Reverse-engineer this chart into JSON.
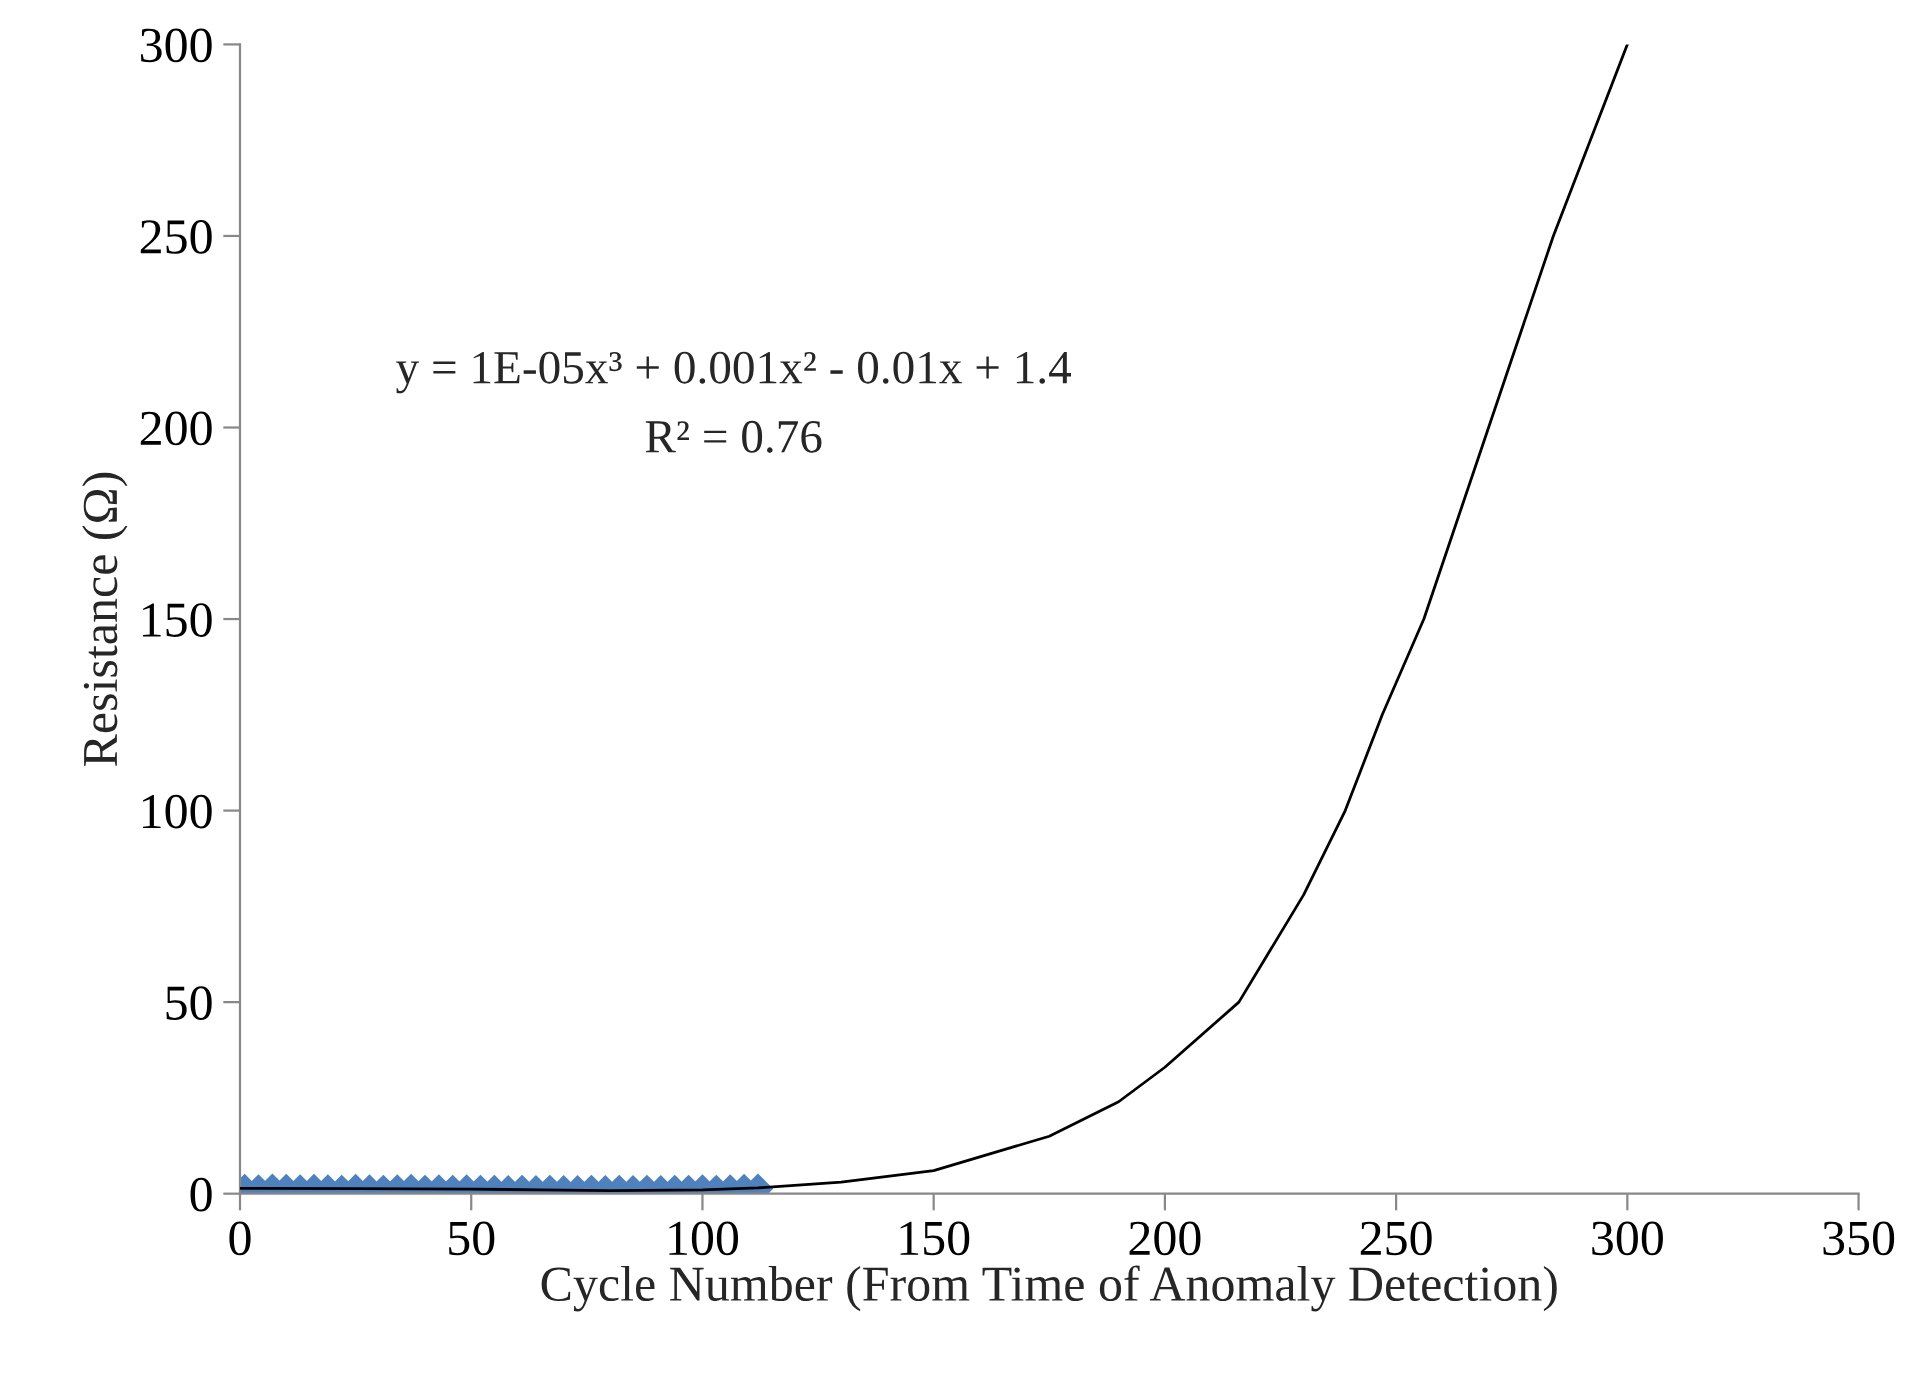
{
  "chart_data": {
    "type": "scatter",
    "xlabel": "Cycle Number (From Time of Anomaly Detection)",
    "ylabel": "Resistance (Ω)",
    "annotations": [
      "y = 1E-05x³ + 0.001x² - 0.01x + 1.4",
      "R² = 0.76"
    ],
    "xlim": [
      0,
      350
    ],
    "xticks": [
      0,
      50,
      100,
      150,
      200,
      250,
      300,
      350
    ],
    "ylim": [
      0,
      300
    ],
    "yticks": [
      0,
      50,
      100,
      150,
      200,
      250,
      300
    ],
    "grid": false,
    "series": [
      {
        "color": "#4f81bd",
        "marker": "diamond",
        "x": [
          1,
          4,
          7,
          10,
          13,
          16,
          19,
          22,
          25,
          28,
          31,
          34,
          37,
          40,
          43,
          46,
          49,
          52,
          55,
          58,
          61,
          64,
          67,
          70,
          73,
          76,
          79,
          82,
          85,
          88,
          91,
          94,
          97,
          100,
          103,
          106,
          109,
          112
        ],
        "values": [
          1.2,
          1.1,
          1.3,
          1.2,
          1.1,
          1.2,
          1.1,
          1.0,
          1.2,
          1.1,
          1.0,
          1.1,
          1.2,
          1.0,
          1.1,
          1.0,
          1.1,
          1.0,
          1.0,
          0.9,
          1.0,
          0.9,
          1.0,
          0.9,
          0.9,
          1.0,
          0.9,
          1.0,
          0.9,
          1.0,
          0.9,
          1.0,
          1.0,
          1.1,
          1.0,
          1.1,
          1.2,
          1.3
        ]
      },
      {
        "type": "line",
        "color": "#000000",
        "marker": "none",
        "line_style": "solid",
        "x": [
          0,
          25,
          50,
          65,
          80,
          100,
          112,
          130,
          150,
          175,
          190,
          200,
          216,
          230,
          239,
          247,
          256,
          263,
          270,
          277,
          284,
          292,
          300
        ],
        "values": [
          1.4,
          1.3,
          1.2,
          1.0,
          0.8,
          1.0,
          1.5,
          3,
          6,
          15,
          24,
          33,
          50,
          78,
          100,
          125,
          150,
          175,
          200,
          225,
          250,
          275,
          300
        ]
      }
    ]
  }
}
